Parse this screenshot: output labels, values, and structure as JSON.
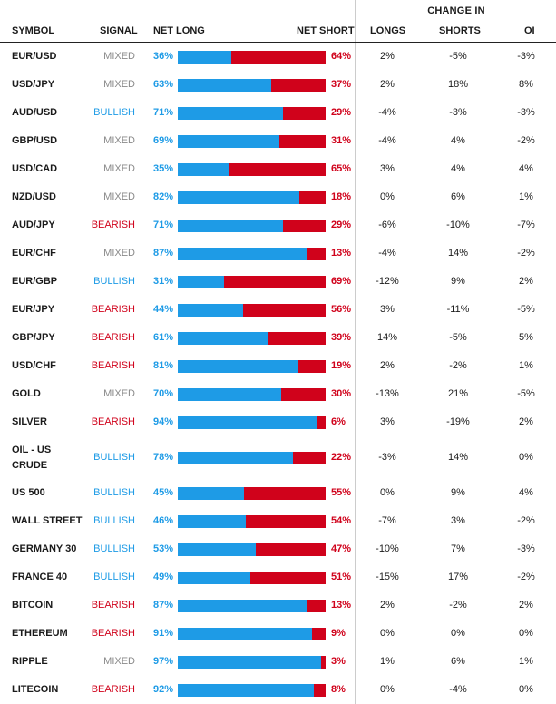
{
  "header": {
    "group_label": "CHANGE IN",
    "symbol": "SYMBOL",
    "signal": "SIGNAL",
    "net_long": "NET LONG",
    "net_short": "NET SHORT",
    "longs": "LONGS",
    "shorts": "SHORTS",
    "oi": "OI"
  },
  "colors": {
    "net_long": "#1e9be6",
    "net_short": "#d0021b",
    "mixed": "#8a8a8a",
    "bullish": "#1e9be6",
    "bearish": "#d0021b"
  },
  "rows": [
    {
      "symbol": "EUR/USD",
      "signal": "MIXED",
      "net_long": "36%",
      "net_short": "64%",
      "longs": "2%",
      "shorts": "-5%",
      "oi": "-3%"
    },
    {
      "symbol": "USD/JPY",
      "signal": "MIXED",
      "net_long": "63%",
      "net_short": "37%",
      "longs": "2%",
      "shorts": "18%",
      "oi": "8%"
    },
    {
      "symbol": "AUD/USD",
      "signal": "BULLISH",
      "net_long": "71%",
      "net_short": "29%",
      "longs": "-4%",
      "shorts": "-3%",
      "oi": "-3%"
    },
    {
      "symbol": "GBP/USD",
      "signal": "MIXED",
      "net_long": "69%",
      "net_short": "31%",
      "longs": "-4%",
      "shorts": "4%",
      "oi": "-2%"
    },
    {
      "symbol": "USD/CAD",
      "signal": "MIXED",
      "net_long": "35%",
      "net_short": "65%",
      "longs": "3%",
      "shorts": "4%",
      "oi": "4%"
    },
    {
      "symbol": "NZD/USD",
      "signal": "MIXED",
      "net_long": "82%",
      "net_short": "18%",
      "longs": "0%",
      "shorts": "6%",
      "oi": "1%"
    },
    {
      "symbol": "AUD/JPY",
      "signal": "BEARISH",
      "net_long": "71%",
      "net_short": "29%",
      "longs": "-6%",
      "shorts": "-10%",
      "oi": "-7%"
    },
    {
      "symbol": "EUR/CHF",
      "signal": "MIXED",
      "net_long": "87%",
      "net_short": "13%",
      "longs": "-4%",
      "shorts": "14%",
      "oi": "-2%"
    },
    {
      "symbol": "EUR/GBP",
      "signal": "BULLISH",
      "net_long": "31%",
      "net_short": "69%",
      "longs": "-12%",
      "shorts": "9%",
      "oi": "2%"
    },
    {
      "symbol": "EUR/JPY",
      "signal": "BEARISH",
      "net_long": "44%",
      "net_short": "56%",
      "longs": "3%",
      "shorts": "-11%",
      "oi": "-5%"
    },
    {
      "symbol": "GBP/JPY",
      "signal": "BEARISH",
      "net_long": "61%",
      "net_short": "39%",
      "longs": "14%",
      "shorts": "-5%",
      "oi": "5%"
    },
    {
      "symbol": "USD/CHF",
      "signal": "BEARISH",
      "net_long": "81%",
      "net_short": "19%",
      "longs": "2%",
      "shorts": "-2%",
      "oi": "1%"
    },
    {
      "symbol": "GOLD",
      "signal": "MIXED",
      "net_long": "70%",
      "net_short": "30%",
      "longs": "-13%",
      "shorts": "21%",
      "oi": "-5%"
    },
    {
      "symbol": "SILVER",
      "signal": "BEARISH",
      "net_long": "94%",
      "net_short": "6%",
      "longs": "3%",
      "shorts": "-19%",
      "oi": "2%"
    },
    {
      "symbol": [
        "OIL - US",
        "CRUDE"
      ],
      "signal": "BULLISH",
      "net_long": "78%",
      "net_short": "22%",
      "longs": "-3%",
      "shorts": "14%",
      "oi": "0%"
    },
    {
      "symbol": "US 500",
      "signal": "BULLISH",
      "net_long": "45%",
      "net_short": "55%",
      "longs": "0%",
      "shorts": "9%",
      "oi": "4%"
    },
    {
      "symbol": "WALL STREET",
      "signal": "BULLISH",
      "net_long": "46%",
      "net_short": "54%",
      "longs": "-7%",
      "shorts": "3%",
      "oi": "-2%"
    },
    {
      "symbol": "GERMANY 30",
      "signal": "BULLISH",
      "net_long": "53%",
      "net_short": "47%",
      "longs": "-10%",
      "shorts": "7%",
      "oi": "-3%"
    },
    {
      "symbol": "FRANCE 40",
      "signal": "BULLISH",
      "net_long": "49%",
      "net_short": "51%",
      "longs": "-15%",
      "shorts": "17%",
      "oi": "-2%"
    },
    {
      "symbol": "BITCOIN",
      "signal": "BEARISH",
      "net_long": "87%",
      "net_short": "13%",
      "longs": "2%",
      "shorts": "-2%",
      "oi": "2%"
    },
    {
      "symbol": "ETHEREUM",
      "signal": "BEARISH",
      "net_long": "91%",
      "net_short": "9%",
      "longs": "0%",
      "shorts": "0%",
      "oi": "0%"
    },
    {
      "symbol": "RIPPLE",
      "signal": "MIXED",
      "net_long": "97%",
      "net_short": "3%",
      "longs": "1%",
      "shorts": "6%",
      "oi": "1%"
    },
    {
      "symbol": "LITECOIN",
      "signal": "BEARISH",
      "net_long": "92%",
      "net_short": "8%",
      "longs": "0%",
      "shorts": "-4%",
      "oi": "0%"
    }
  ]
}
